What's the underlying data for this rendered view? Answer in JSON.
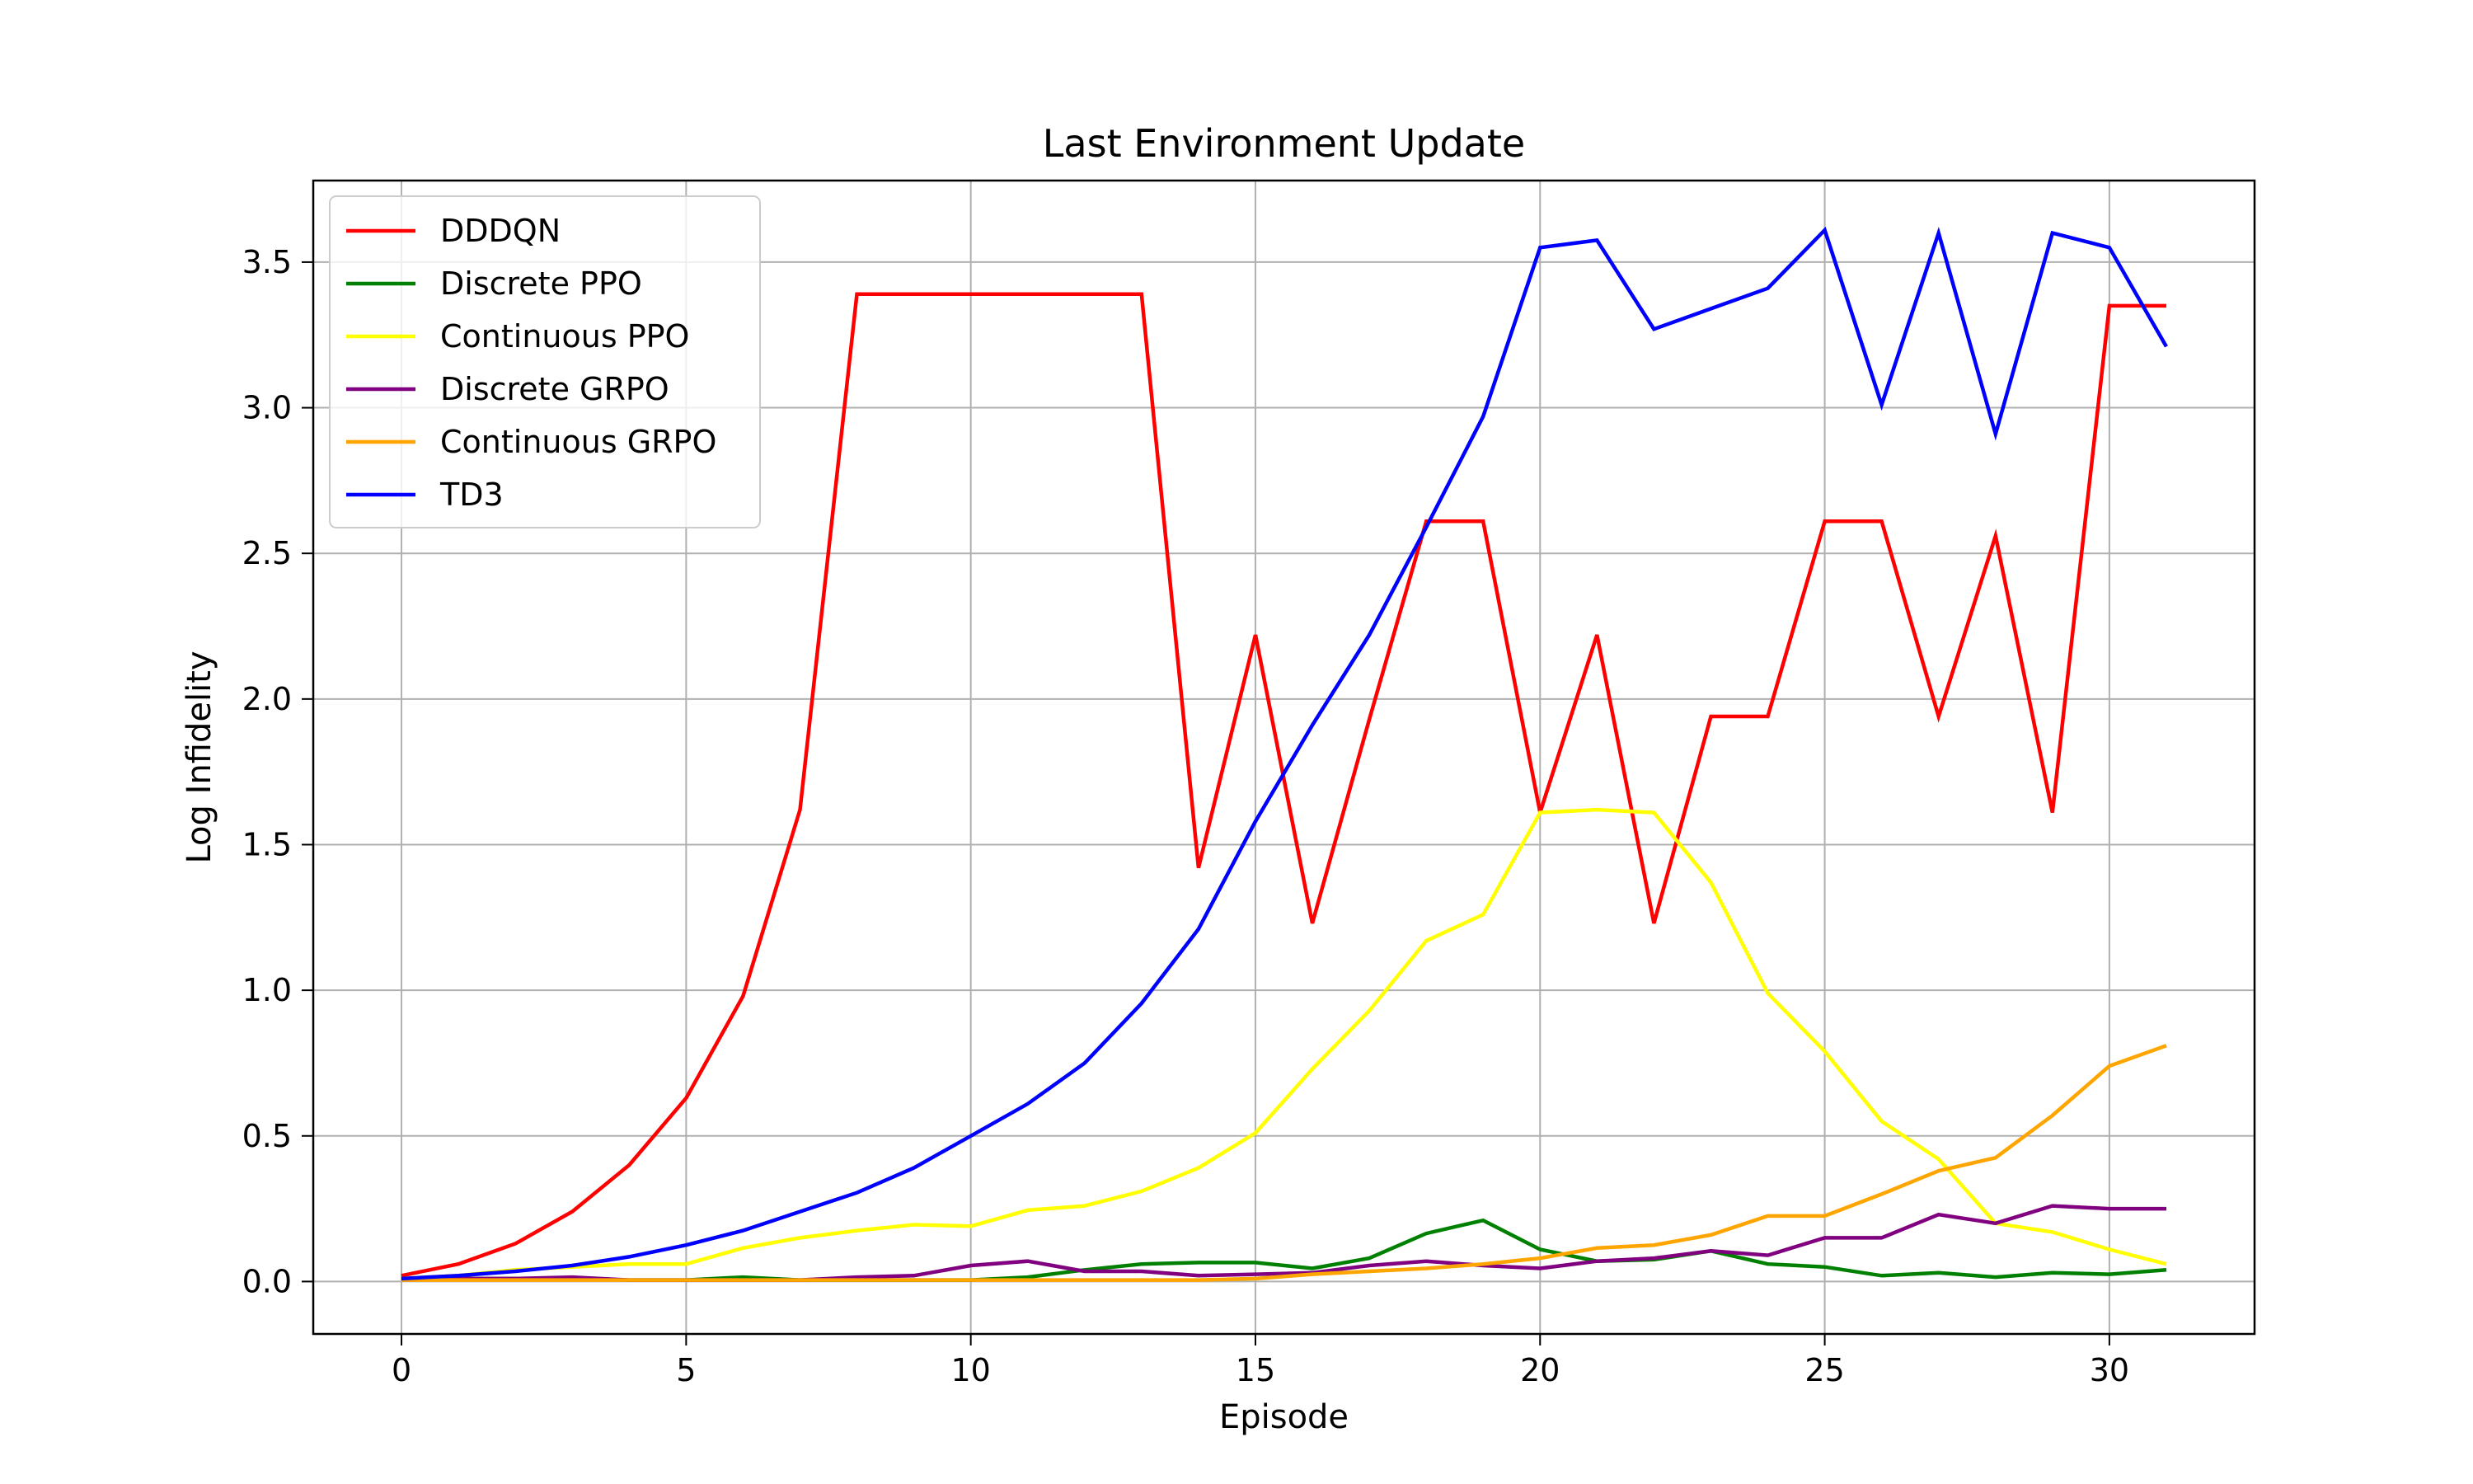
{
  "chart_data": {
    "type": "line",
    "title": "Last Environment Update",
    "xlabel": "Episode",
    "ylabel": "Log Infidelity",
    "xlim": [
      -1.55,
      32.55
    ],
    "ylim": [
      -0.18,
      3.78
    ],
    "xticks": [
      0,
      5,
      10,
      15,
      20,
      25,
      30
    ],
    "yticks": [
      0.0,
      0.5,
      1.0,
      1.5,
      2.0,
      2.5,
      3.0,
      3.5
    ],
    "xtick_labels": [
      "0",
      "5",
      "10",
      "15",
      "20",
      "25",
      "30"
    ],
    "ytick_labels": [
      "0.0",
      "0.5",
      "1.0",
      "1.5",
      "2.0",
      "2.5",
      "3.0",
      "3.5"
    ],
    "grid": true,
    "legend_position": "top-left",
    "x": [
      0,
      1,
      2,
      3,
      4,
      5,
      6,
      7,
      8,
      9,
      10,
      11,
      12,
      13,
      14,
      15,
      16,
      17,
      18,
      19,
      20,
      21,
      22,
      23,
      24,
      25,
      26,
      27,
      28,
      29,
      30,
      31
    ],
    "series": [
      {
        "name": "DDDQN",
        "color": "#ff0000",
        "values": [
          0.02,
          0.06,
          0.13,
          0.24,
          0.4,
          0.63,
          0.98,
          1.62,
          3.39,
          3.39,
          3.39,
          3.39,
          3.39,
          3.39,
          1.42,
          2.22,
          1.23,
          1.93,
          2.61,
          2.61,
          1.61,
          2.22,
          1.23,
          1.94,
          1.94,
          2.61,
          2.61,
          1.94,
          2.56,
          1.61,
          3.35,
          3.35
        ]
      },
      {
        "name": "Discrete PPO",
        "color": "#008000",
        "values": [
          0.01,
          0.01,
          0.01,
          0.01,
          0.005,
          0.005,
          0.015,
          0.005,
          0.005,
          0.005,
          0.005,
          0.015,
          0.04,
          0.06,
          0.065,
          0.065,
          0.045,
          0.08,
          0.165,
          0.21,
          0.11,
          0.07,
          0.075,
          0.105,
          0.06,
          0.05,
          0.02,
          0.03,
          0.015,
          0.03,
          0.025,
          0.04
        ]
      },
      {
        "name": "Continuous PPO",
        "color": "#ffff00",
        "values": [
          0.01,
          0.02,
          0.04,
          0.05,
          0.06,
          0.06,
          0.115,
          0.15,
          0.175,
          0.195,
          0.19,
          0.245,
          0.26,
          0.31,
          0.39,
          0.51,
          0.73,
          0.93,
          1.17,
          1.26,
          1.61,
          1.62,
          1.61,
          1.37,
          0.99,
          0.79,
          0.55,
          0.42,
          0.2,
          0.17,
          0.11,
          0.06
        ]
      },
      {
        "name": "Discrete GRPO",
        "color": "#800080",
        "values": [
          0.005,
          0.01,
          0.01,
          0.015,
          0.005,
          0.005,
          0.005,
          0.005,
          0.015,
          0.02,
          0.055,
          0.07,
          0.035,
          0.035,
          0.02,
          0.025,
          0.03,
          0.055,
          0.07,
          0.055,
          0.045,
          0.07,
          0.08,
          0.105,
          0.09,
          0.15,
          0.15,
          0.23,
          0.2,
          0.26,
          0.25,
          0.25
        ]
      },
      {
        "name": "Continuous GRPO",
        "color": "#ffa500",
        "values": [
          0.005,
          0.005,
          0.005,
          0.005,
          0.005,
          0.005,
          0.005,
          0.005,
          0.005,
          0.005,
          0.005,
          0.005,
          0.005,
          0.005,
          0.005,
          0.01,
          0.025,
          0.035,
          0.045,
          0.06,
          0.08,
          0.115,
          0.125,
          0.16,
          0.225,
          0.225,
          0.3,
          0.38,
          0.425,
          0.57,
          0.74,
          0.81
        ]
      },
      {
        "name": "TD3",
        "color": "#0000ff",
        "values": [
          0.01,
          0.02,
          0.035,
          0.055,
          0.085,
          0.125,
          0.175,
          0.24,
          0.305,
          0.39,
          0.5,
          0.61,
          0.75,
          0.955,
          1.21,
          1.58,
          1.91,
          2.22,
          2.59,
          2.97,
          3.55,
          3.575,
          3.27,
          3.34,
          3.41,
          3.61,
          3.01,
          3.6,
          2.91,
          3.6,
          3.55,
          3.21
        ]
      }
    ]
  }
}
